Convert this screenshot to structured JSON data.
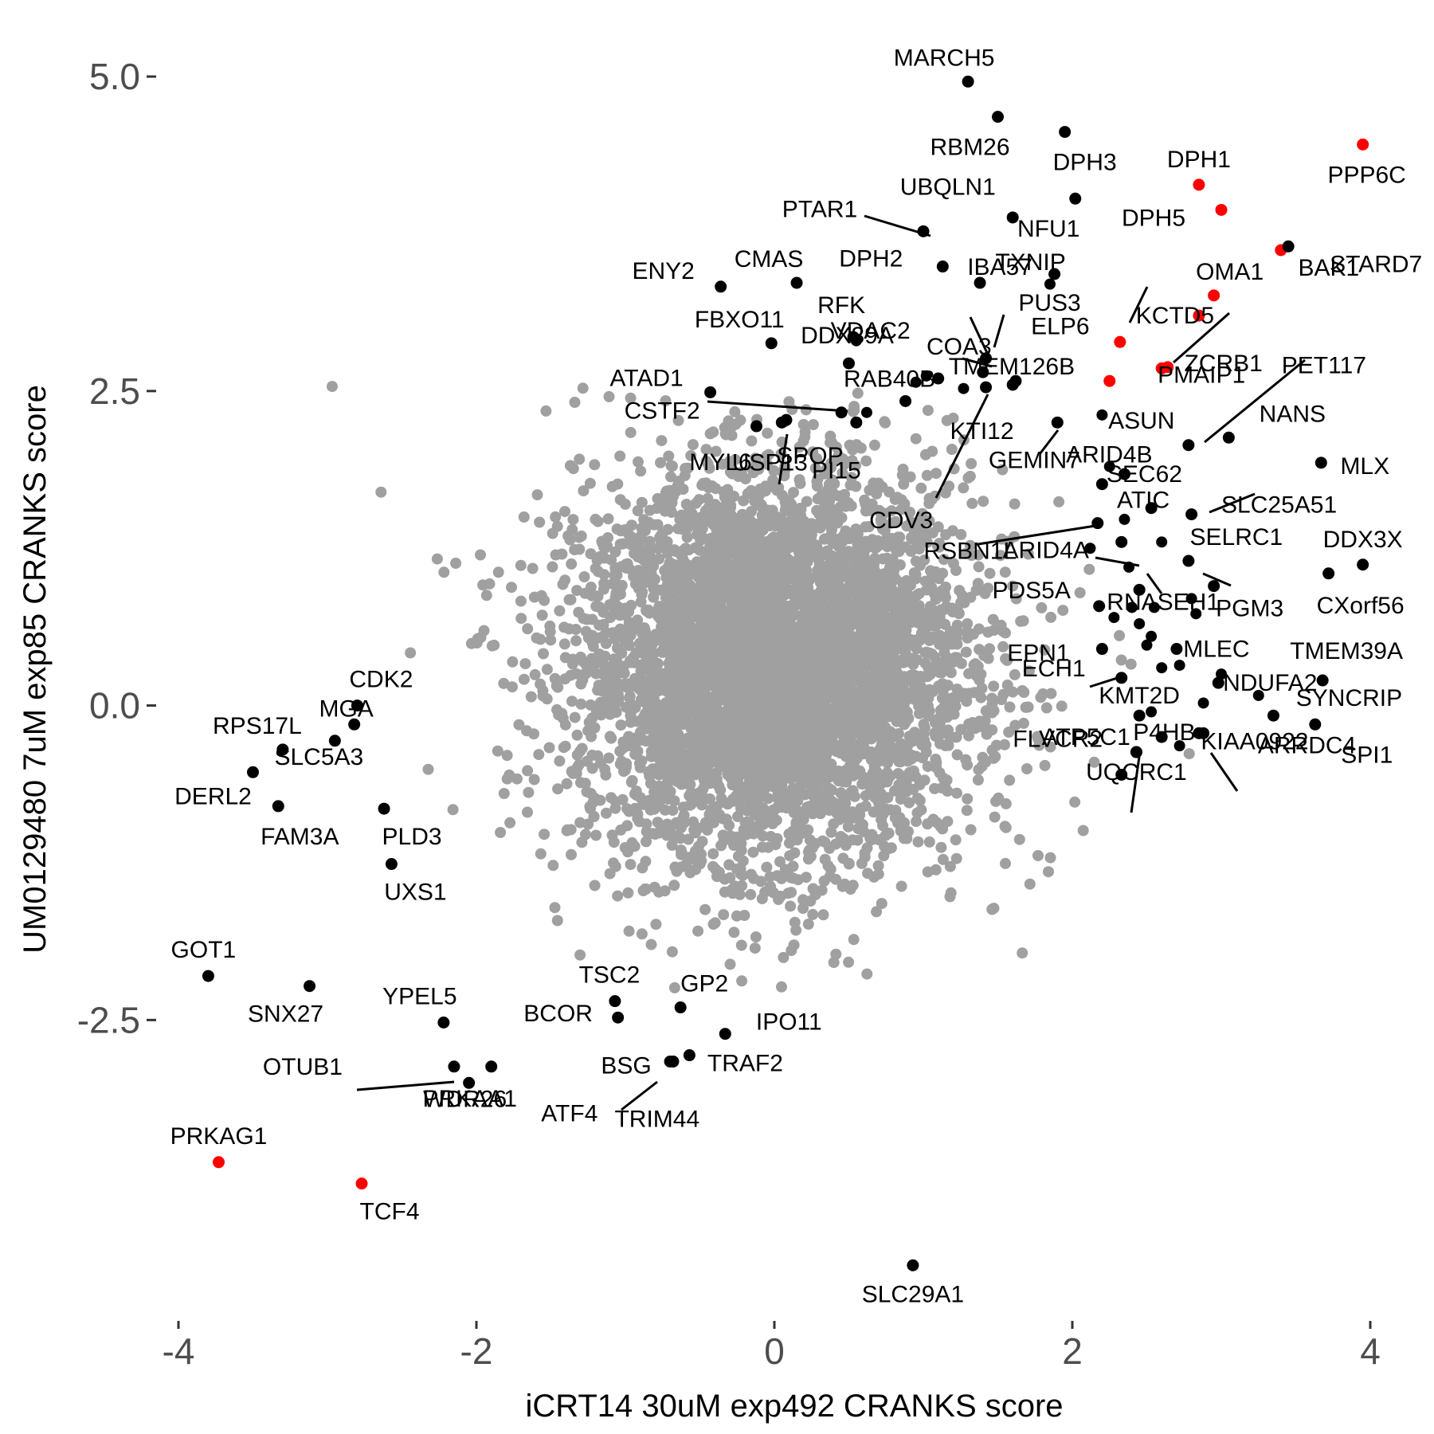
{
  "chart_data": {
    "type": "scatter",
    "title": "",
    "xlabel": "iCRT14 30uM exp492 CRANKS score",
    "ylabel": "UM0129480 7uM exp85 CRANKS score",
    "xlim": [
      -4.5,
      4.2
    ],
    "ylim": [
      -4.9,
      5.6
    ],
    "x_ticks": [
      -4,
      -2,
      0,
      2,
      4
    ],
    "x_tick_labels": [
      "-4",
      "-2",
      "0",
      "2",
      "4"
    ],
    "y_ticks": [
      -2.5,
      0,
      2.5,
      5
    ],
    "y_tick_labels": [
      "-2.5",
      "0.0",
      "2.5",
      "5.0"
    ],
    "grid": false,
    "legend": "none",
    "colors": {
      "background": "#a0a0a0",
      "highlight": "#ff0000",
      "labeled": "#000000",
      "ticks": "#4d4d4d"
    },
    "background_series": {
      "name": "",
      "n_points": 5200,
      "center": [
        0.0,
        0.3
      ],
      "sd": [
        0.65,
        0.75
      ],
      "note_color": "#a0a0a0"
    },
    "labeled_points": [
      {
        "label": "MARCH5",
        "x": 1.3,
        "y": 4.96,
        "color": "black"
      },
      {
        "label": "RBM26",
        "x": 1.5,
        "y": 4.68,
        "color": "black"
      },
      {
        "label": "DPH3",
        "x": 1.95,
        "y": 4.56,
        "color": "black"
      },
      {
        "label": "DPH1",
        "x": 2.85,
        "y": 4.14,
        "color": "red"
      },
      {
        "label": "PPP6C",
        "x": 3.95,
        "y": 4.46,
        "color": "red"
      },
      {
        "label": "UBQLN1",
        "x": 2.02,
        "y": 4.03,
        "color": "black"
      },
      {
        "label": "NFU1",
        "x": 1.6,
        "y": 3.88,
        "color": "black"
      },
      {
        "label": "DPH5",
        "x": 3.0,
        "y": 3.94,
        "color": "red"
      },
      {
        "label": "BAK1",
        "x": 3.4,
        "y": 3.62,
        "color": "red"
      },
      {
        "label": "PTAR1",
        "x": 1.0,
        "y": 3.77,
        "color": "black"
      },
      {
        "label": "STARD7",
        "x": 3.45,
        "y": 3.65,
        "color": "black"
      },
      {
        "label": "ENY2",
        "x": -0.36,
        "y": 3.33,
        "color": "black"
      },
      {
        "label": "CMAS",
        "x": 0.15,
        "y": 3.36,
        "color": "black"
      },
      {
        "label": "DPH2",
        "x": 1.13,
        "y": 3.49,
        "color": "black"
      },
      {
        "label": "IBA57",
        "x": 1.38,
        "y": 3.36,
        "color": "black"
      },
      {
        "label": "TXNIP",
        "x": 1.88,
        "y": 3.43,
        "color": "black"
      },
      {
        "label": "OMA1",
        "x": 2.95,
        "y": 3.26,
        "color": "red"
      },
      {
        "label": "KCTD5",
        "x": 2.85,
        "y": 3.1,
        "color": "red"
      },
      {
        "label": "PMAIP1",
        "x": 2.6,
        "y": 2.68,
        "color": "red"
      },
      {
        "label": "FBXO11",
        "x": -0.02,
        "y": 2.88,
        "color": "black"
      },
      {
        "label": "RFK",
        "x": 0.53,
        "y": 2.93,
        "color": "black"
      },
      {
        "label": "COA3",
        "x": 1.4,
        "y": 2.65,
        "color": "black"
      },
      {
        "label": "PUS3",
        "x": 1.42,
        "y": 2.76,
        "color": "black"
      },
      {
        "label": "VDAC2",
        "x": 1.1,
        "y": 2.6,
        "color": "black"
      },
      {
        "label": "ELP6",
        "x": 2.32,
        "y": 2.89,
        "color": "red"
      },
      {
        "label": "ZCRB1",
        "x": 2.64,
        "y": 2.69,
        "color": "red"
      },
      {
        "label": "ATAD1",
        "x": -0.43,
        "y": 2.49,
        "color": "black"
      },
      {
        "label": "DDX39A",
        "x": 0.5,
        "y": 2.72,
        "color": "black"
      },
      {
        "label": "RAB40B",
        "x": 0.88,
        "y": 2.42,
        "color": "black"
      },
      {
        "label": "TMEM126B",
        "x": 1.62,
        "y": 2.58,
        "color": "black"
      },
      {
        "label": "ASUN",
        "x": 2.25,
        "y": 2.58,
        "color": "red"
      },
      {
        "label": "PET117",
        "x": 2.78,
        "y": 2.07,
        "color": "black"
      },
      {
        "label": "CSTF2",
        "x": 0.45,
        "y": 2.33,
        "color": "black"
      },
      {
        "label": "NANS",
        "x": 3.05,
        "y": 2.13,
        "color": "black"
      },
      {
        "label": "MYL6",
        "x": -0.12,
        "y": 2.22,
        "color": "black"
      },
      {
        "label": "SPOP",
        "x": 0.08,
        "y": 2.27,
        "color": "black"
      },
      {
        "label": "PI15",
        "x": 0.55,
        "y": 2.25,
        "color": "black"
      },
      {
        "label": "KTI12",
        "x": 1.42,
        "y": 2.53,
        "color": "black"
      },
      {
        "label": "ARID4B",
        "x": 1.9,
        "y": 2.25,
        "color": "black"
      },
      {
        "label": "MLX",
        "x": 3.67,
        "y": 1.93,
        "color": "black"
      },
      {
        "label": "SEC62",
        "x": 2.35,
        "y": 1.84,
        "color": "black"
      },
      {
        "label": "USP13",
        "x": 0.05,
        "y": 2.25,
        "color": "black"
      },
      {
        "label": "CDV3",
        "x": 1.6,
        "y": 2.55,
        "color": "black"
      },
      {
        "label": "GEMIN7",
        "x": 2.2,
        "y": 1.76,
        "color": "black"
      },
      {
        "label": "ATIC",
        "x": 2.53,
        "y": 1.57,
        "color": "black"
      },
      {
        "label": "SLC25A51",
        "x": 2.8,
        "y": 1.52,
        "color": "black"
      },
      {
        "label": "RSBN1L",
        "x": 2.17,
        "y": 1.45,
        "color": "black"
      },
      {
        "label": "ARID4A",
        "x": 2.33,
        "y": 1.3,
        "color": "black"
      },
      {
        "label": "SELRC1",
        "x": 2.78,
        "y": 1.15,
        "color": "black"
      },
      {
        "label": "DDX3X",
        "x": 3.95,
        "y": 1.12,
        "color": "black"
      },
      {
        "label": "PDS5A",
        "x": 2.18,
        "y": 0.79,
        "color": "black"
      },
      {
        "label": "RNASEH1",
        "x": 2.45,
        "y": 0.92,
        "color": "black"
      },
      {
        "label": "PGM3",
        "x": 2.95,
        "y": 0.95,
        "color": "black"
      },
      {
        "label": "CXorf56",
        "x": 3.72,
        "y": 1.05,
        "color": "black"
      },
      {
        "label": "EPN1",
        "x": 2.2,
        "y": 0.45,
        "color": "black"
      },
      {
        "label": "MLEC",
        "x": 2.7,
        "y": 0.45,
        "color": "black"
      },
      {
        "label": "TMEM39A",
        "x": 3.68,
        "y": 0.2,
        "color": "black"
      },
      {
        "label": "ECH1",
        "x": 2.33,
        "y": 0.22,
        "color": "black"
      },
      {
        "label": "KMT2D",
        "x": 2.45,
        "y": -0.08,
        "color": "black"
      },
      {
        "label": "NDUFA2",
        "x": 2.98,
        "y": 0.18,
        "color": "black"
      },
      {
        "label": "SYNCRIP",
        "x": 3.35,
        "y": -0.08,
        "color": "black"
      },
      {
        "label": "ATP5C1",
        "x": 2.6,
        "y": -0.25,
        "color": "black"
      },
      {
        "label": "KIAA0922",
        "x": 2.85,
        "y": -0.22,
        "color": "black"
      },
      {
        "label": "SPI1",
        "x": 3.63,
        "y": -0.15,
        "color": "black"
      },
      {
        "label": "FLVCR2",
        "x": 2.33,
        "y": -0.55,
        "color": "black"
      },
      {
        "label": "P4HB",
        "x": 2.43,
        "y": -0.37,
        "color": "black"
      },
      {
        "label": "ARRDC4",
        "x": 2.88,
        "y": -0.22,
        "color": "black"
      },
      {
        "label": "UQCRC1",
        "x": 2.43,
        "y": -0.37,
        "color": "black"
      },
      {
        "label": "CDK2",
        "x": -2.8,
        "y": 0.0,
        "color": "black"
      },
      {
        "label": "RPS17L",
        "x": -3.3,
        "y": -0.35,
        "color": "black"
      },
      {
        "label": "MGA",
        "x": -2.82,
        "y": -0.15,
        "color": "black"
      },
      {
        "label": "SLC5A3",
        "x": -2.95,
        "y": -0.28,
        "color": "black"
      },
      {
        "label": "DERL2",
        "x": -3.5,
        "y": -0.53,
        "color": "black"
      },
      {
        "label": "FAM3A",
        "x": -3.33,
        "y": -0.8,
        "color": "black"
      },
      {
        "label": "PLD3",
        "x": -2.62,
        "y": -0.82,
        "color": "black"
      },
      {
        "label": "UXS1",
        "x": -2.57,
        "y": -1.26,
        "color": "black"
      },
      {
        "label": "GOT1",
        "x": -3.8,
        "y": -2.15,
        "color": "black"
      },
      {
        "label": "SNX27",
        "x": -3.12,
        "y": -2.23,
        "color": "black"
      },
      {
        "label": "YPEL5",
        "x": -2.22,
        "y": -2.52,
        "color": "black"
      },
      {
        "label": "WDR26",
        "x": -2.05,
        "y": -3.0,
        "color": "black"
      },
      {
        "label": "OTUB1",
        "x": -2.15,
        "y": -2.87,
        "color": "black"
      },
      {
        "label": "PRKAA1",
        "x": -1.9,
        "y": -2.87,
        "color": "black"
      },
      {
        "label": "PRKAG1",
        "x": -3.73,
        "y": -3.63,
        "color": "red"
      },
      {
        "label": "TCF4",
        "x": -2.77,
        "y": -3.8,
        "color": "red"
      },
      {
        "label": "TSC2",
        "x": -1.07,
        "y": -2.35,
        "color": "black"
      },
      {
        "label": "BCOR",
        "x": -1.05,
        "y": -2.48,
        "color": "black"
      },
      {
        "label": "GP2",
        "x": -0.63,
        "y": -2.4,
        "color": "black"
      },
      {
        "label": "IPO11",
        "x": -0.33,
        "y": -2.61,
        "color": "black"
      },
      {
        "label": "BSG",
        "x": -0.7,
        "y": -2.83,
        "color": "black"
      },
      {
        "label": "TRAF2",
        "x": -0.57,
        "y": -2.78,
        "color": "black"
      },
      {
        "label": "ATF4",
        "x": -0.68,
        "y": -2.83,
        "color": "black"
      },
      {
        "label": "TRIM44",
        "x": -0.68,
        "y": -2.83,
        "color": "black"
      },
      {
        "label": "SLC29A1",
        "x": 0.93,
        "y": -4.45,
        "color": "black"
      }
    ],
    "unlabeled_highlight_points": [
      {
        "x": 1.02,
        "y": 2.62
      },
      {
        "x": 1.27,
        "y": 2.52
      },
      {
        "x": 0.95,
        "y": 2.57
      },
      {
        "x": 2.2,
        "y": 2.31
      },
      {
        "x": 2.35,
        "y": 1.48
      },
      {
        "x": 2.6,
        "y": 1.3
      },
      {
        "x": 2.38,
        "y": 1.1
      },
      {
        "x": 2.4,
        "y": 0.78
      },
      {
        "x": 2.55,
        "y": 0.78
      },
      {
        "x": 2.45,
        "y": 0.65
      },
      {
        "x": 2.53,
        "y": 0.55
      },
      {
        "x": 2.83,
        "y": 0.73
      },
      {
        "x": 2.8,
        "y": 0.85
      },
      {
        "x": 2.28,
        "y": 0.7
      },
      {
        "x": 2.5,
        "y": 0.48
      },
      {
        "x": 2.72,
        "y": 0.32
      },
      {
        "x": 3.0,
        "y": 0.25
      },
      {
        "x": 3.25,
        "y": 0.08
      },
      {
        "x": 2.53,
        "y": -0.05
      },
      {
        "x": 2.72,
        "y": -0.32
      },
      {
        "x": 2.88,
        "y": 0.02
      },
      {
        "x": 2.6,
        "y": 0.3
      },
      {
        "x": 1.85,
        "y": 3.35
      },
      {
        "x": 0.62,
        "y": 2.33
      },
      {
        "x": 0.55,
        "y": 2.9
      },
      {
        "x": 2.25,
        "y": 1.9
      },
      {
        "x": 2.12,
        "y": 1.25
      }
    ]
  }
}
